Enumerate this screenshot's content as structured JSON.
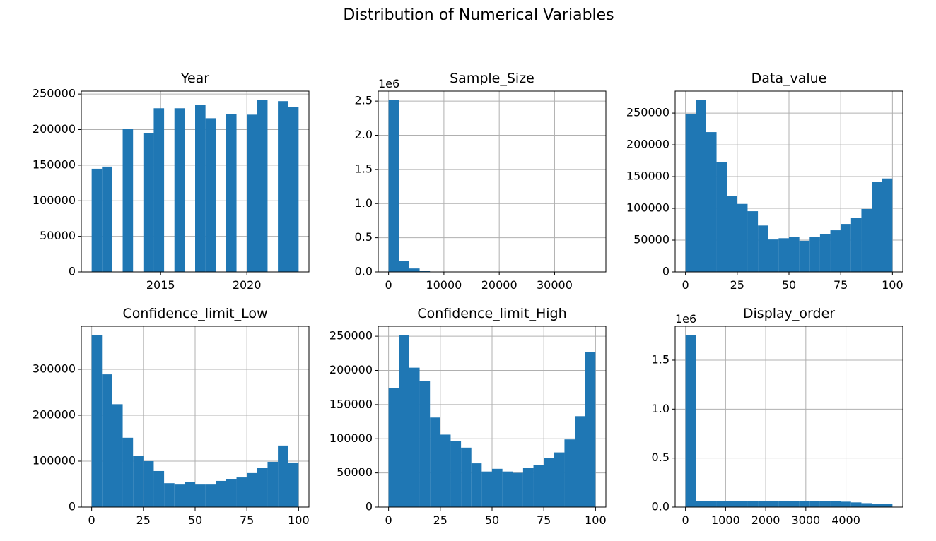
{
  "title": "Distribution of Numerical Variables",
  "chart_data": [
    {
      "type": "histogram",
      "title": "Year",
      "color": "#1f77b4",
      "grid": true,
      "bins": [
        2011,
        2011.6,
        2012.2,
        2012.8,
        2013.4,
        2014.0,
        2014.6,
        2015.2,
        2015.8,
        2016.4,
        2017.0,
        2017.6,
        2018.2,
        2018.8,
        2019.4,
        2020.0,
        2020.6,
        2021.2,
        2021.8,
        2022.4,
        2023.0
      ],
      "values": [
        145000,
        148000,
        0,
        201000,
        0,
        195000,
        230000,
        0,
        230000,
        0,
        235000,
        216000,
        0,
        222000,
        0,
        221000,
        242000,
        0,
        240000,
        232000
      ],
      "xlim": [
        2010.4,
        2023.6
      ],
      "xticks": [
        2015,
        2020
      ],
      "ylim": [
        0,
        254100
      ],
      "yticks": [
        0,
        50000,
        100000,
        150000,
        200000,
        250000
      ]
    },
    {
      "type": "histogram",
      "title": "Sample_Size",
      "color": "#1f77b4",
      "grid": true,
      "y_offset_label": "1e6",
      "bins": [
        0,
        1870,
        3740,
        5610,
        7480,
        9350,
        11220,
        13090,
        14960,
        16830,
        18700,
        20570,
        22440,
        24310,
        26180,
        28050,
        29920,
        31790,
        33660,
        35530,
        37400
      ],
      "values": [
        2520000,
        160000,
        50000,
        15000,
        5000,
        2000,
        1000,
        500,
        300,
        200,
        100,
        100,
        50,
        50,
        20,
        20,
        10,
        10,
        5,
        5
      ],
      "xlim": [
        -1870,
        39270
      ],
      "xticks": [
        0,
        10000,
        20000,
        30000
      ],
      "ylim": [
        0,
        2646000
      ],
      "yticks": [
        {
          "value": 0,
          "label": "0.0"
        },
        {
          "value": 500000,
          "label": "0.5"
        },
        {
          "value": 1000000,
          "label": "1.0"
        },
        {
          "value": 1500000,
          "label": "1.5"
        },
        {
          "value": 2000000,
          "label": "2.0"
        },
        {
          "value": 2500000,
          "label": "2.5"
        }
      ]
    },
    {
      "type": "histogram",
      "title": "Data_value",
      "color": "#1f77b4",
      "grid": true,
      "bins": [
        0,
        5,
        10,
        15,
        20,
        25,
        30,
        35,
        40,
        45,
        50,
        55,
        60,
        65,
        70,
        75,
        80,
        85,
        90,
        95,
        100
      ],
      "values": [
        249000,
        271000,
        220000,
        173000,
        120000,
        107000,
        95500,
        73000,
        51000,
        53000,
        54500,
        49000,
        55500,
        60000,
        65500,
        75500,
        84500,
        99000,
        142000,
        147000
      ],
      "xlim": [
        -5,
        105
      ],
      "xticks": [
        0,
        25,
        50,
        75,
        100
      ],
      "ylim": [
        0,
        284550
      ],
      "yticks": [
        0,
        50000,
        100000,
        150000,
        200000,
        250000
      ]
    },
    {
      "type": "histogram",
      "title": "Confidence_limit_Low",
      "color": "#1f77b4",
      "grid": true,
      "bins": [
        0,
        5,
        10,
        15,
        20,
        25,
        30,
        35,
        40,
        45,
        50,
        55,
        60,
        65,
        70,
        75,
        80,
        85,
        90,
        95,
        100
      ],
      "values": [
        375000,
        289000,
        224000,
        151000,
        112000,
        100000,
        78500,
        52000,
        49000,
        55000,
        49000,
        49000,
        57000,
        61500,
        64500,
        74000,
        86000,
        98500,
        134000,
        97000
      ],
      "xlim": [
        -5,
        105
      ],
      "xticks": [
        0,
        25,
        50,
        75,
        100
      ],
      "ylim": [
        0,
        393750
      ],
      "yticks": [
        0,
        100000,
        200000,
        300000
      ]
    },
    {
      "type": "histogram",
      "title": "Confidence_limit_High",
      "color": "#1f77b4",
      "grid": true,
      "bins": [
        0,
        5,
        10,
        15,
        20,
        25,
        30,
        35,
        40,
        45,
        50,
        55,
        60,
        65,
        70,
        75,
        80,
        85,
        90,
        95,
        100
      ],
      "values": [
        174000,
        252000,
        204000,
        184000,
        131000,
        106000,
        97000,
        87000,
        64000,
        52000,
        56000,
        52000,
        50000,
        57000,
        62000,
        72000,
        80000,
        99000,
        133000,
        227000
      ],
      "xlim": [
        -5,
        105
      ],
      "xticks": [
        0,
        25,
        50,
        75,
        100
      ],
      "ylim": [
        0,
        264600
      ],
      "yticks": [
        0,
        50000,
        100000,
        150000,
        200000,
        250000
      ]
    },
    {
      "type": "histogram",
      "title": "Display_order",
      "color": "#1f77b4",
      "grid": true,
      "y_offset_label": "1e6",
      "bins": [
        0,
        258,
        516,
        774,
        1032,
        1290,
        1548,
        1806,
        2064,
        2322,
        2580,
        2838,
        3096,
        3354,
        3612,
        3870,
        4128,
        4386,
        4644,
        4902,
        5160
      ],
      "values": [
        1758000,
        65000,
        65000,
        65000,
        65000,
        65000,
        65000,
        65000,
        65000,
        65000,
        63000,
        62000,
        60000,
        60000,
        58000,
        55000,
        48000,
        40000,
        35000,
        32000
      ],
      "xlim": [
        -258,
        5418
      ],
      "xticks": [
        0,
        1000,
        2000,
        3000,
        4000
      ],
      "ylim": [
        0,
        1846000
      ],
      "yticks": [
        {
          "value": 0,
          "label": "0.0"
        },
        {
          "value": 500000,
          "label": "0.5"
        },
        {
          "value": 1000000,
          "label": "1.0"
        },
        {
          "value": 1500000,
          "label": "1.5"
        }
      ]
    }
  ]
}
